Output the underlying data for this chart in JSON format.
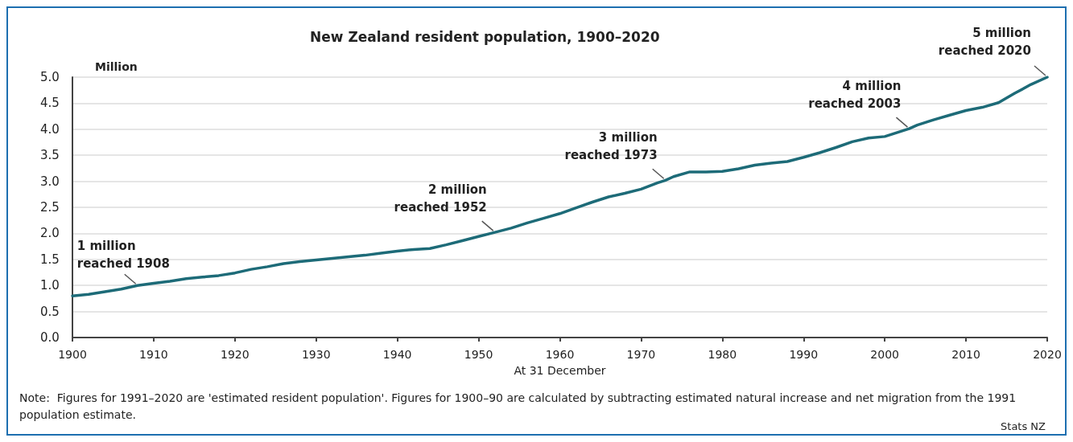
{
  "chart_data": {
    "type": "line",
    "title": "New Zealand resident population, 1900–2020",
    "xlabel": "At 31 December",
    "ylabel": "Million",
    "x": [
      1900,
      1902,
      1904,
      1906,
      1908,
      1910,
      1912,
      1914,
      1916,
      1918,
      1920,
      1922,
      1924,
      1926,
      1928,
      1930,
      1932,
      1934,
      1936,
      1938,
      1940,
      1942,
      1944,
      1946,
      1948,
      1950,
      1952,
      1954,
      1956,
      1958,
      1960,
      1962,
      1964,
      1966,
      1968,
      1970,
      1972,
      1973,
      1974,
      1976,
      1978,
      1980,
      1982,
      1984,
      1986,
      1988,
      1990,
      1992,
      1994,
      1996,
      1998,
      2000,
      2002,
      2003,
      2004,
      2006,
      2008,
      2010,
      2012,
      2014,
      2016,
      2018,
      2020
    ],
    "series": [
      {
        "color": "#1d6b78",
        "values": [
          0.8,
          0.83,
          0.88,
          0.93,
          1.0,
          1.04,
          1.08,
          1.13,
          1.16,
          1.19,
          1.24,
          1.31,
          1.36,
          1.42,
          1.46,
          1.49,
          1.52,
          1.55,
          1.58,
          1.62,
          1.66,
          1.69,
          1.71,
          1.78,
          1.86,
          1.94,
          2.02,
          2.1,
          2.2,
          2.29,
          2.38,
          2.49,
          2.6,
          2.7,
          2.77,
          2.85,
          2.97,
          3.02,
          3.09,
          3.18,
          3.18,
          3.19,
          3.24,
          3.31,
          3.35,
          3.38,
          3.46,
          3.55,
          3.65,
          3.76,
          3.83,
          3.86,
          3.96,
          4.01,
          4.08,
          4.18,
          4.27,
          4.36,
          4.42,
          4.51,
          4.69,
          4.86,
          5.0
        ]
      }
    ],
    "xlim": [
      1900,
      2020
    ],
    "xticks": [
      1900,
      1910,
      1920,
      1930,
      1940,
      1950,
      1960,
      1970,
      1980,
      1990,
      2000,
      2010,
      2020
    ],
    "ylim": [
      0,
      5
    ],
    "yticks": [
      {
        "value": 0,
        "label": "0.0"
      },
      {
        "value": 0.5,
        "label": "0.5"
      },
      {
        "value": 1,
        "label": "1.0"
      },
      {
        "value": 1.5,
        "label": "1.5"
      },
      {
        "value": 2,
        "label": "2.0"
      },
      {
        "value": 2.5,
        "label": "2.5"
      },
      {
        "value": 3,
        "label": "3.0"
      },
      {
        "value": 3.5,
        "label": "3.5"
      },
      {
        "value": 4,
        "label": "4.0"
      },
      {
        "value": 4.5,
        "label": "4.5"
      },
      {
        "value": 5,
        "label": "5.0"
      }
    ],
    "grid": "y",
    "marker": "none",
    "line_style": "solid",
    "annotations": [
      {
        "text": "1 million\nreached 1908",
        "x": 1908,
        "y": 1.0
      },
      {
        "text": "2 million\nreached 1952",
        "x": 1952,
        "y": 2.02
      },
      {
        "text": "3 million\nreached 1973",
        "x": 1973,
        "y": 3.02
      },
      {
        "text": "4 million\nreached 2003",
        "x": 2003,
        "y": 4.01
      },
      {
        "text": "5 million\nreached 2020",
        "x": 2020,
        "y": 5.0
      },
      "Note:  Figures for 1991–2020 are 'estimated resident population'. Figures for 1900–90 are calculated by subtracting estimated natural increase and net migration from the 1991 population estimate.",
      "Stats NZ"
    ]
  }
}
